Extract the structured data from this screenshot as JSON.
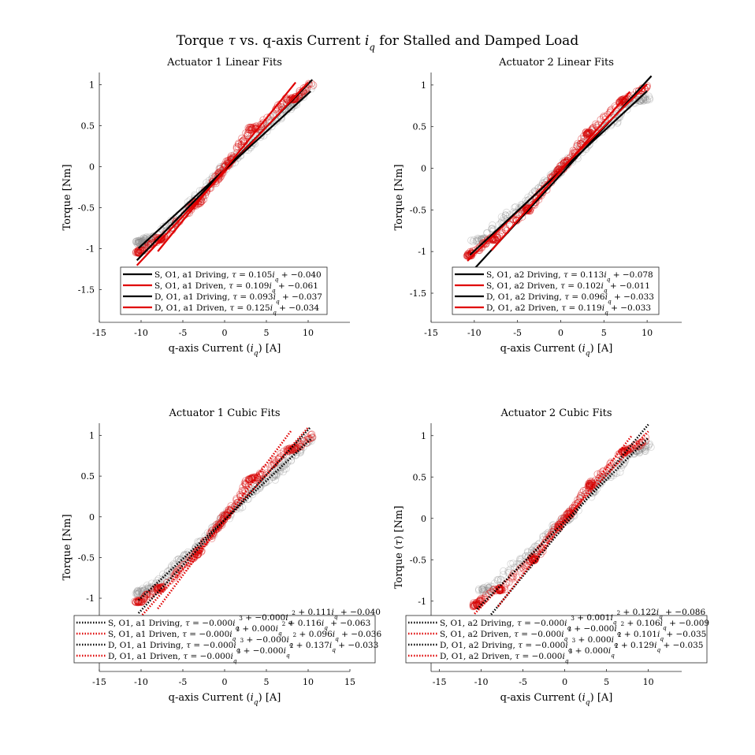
{
  "figure": {
    "title": "Torque τ vs. q-axis Current i_q for Stalled and Damped Load"
  },
  "chart_data": [
    {
      "type": "scatter",
      "title": "Actuator 1 Linear Fits",
      "xlabel": "q-axis Current (i_q) [A]",
      "ylabel": "Torque [Nm]",
      "xlim": [
        -15,
        15
      ],
      "ylim": [
        -1.9,
        1.15
      ],
      "xticks": [
        "-15",
        "-10",
        "-5",
        "0",
        "5",
        "10"
      ],
      "yticks": [
        "-1.5",
        "-1",
        "-0.5",
        "0",
        "0.5",
        "1"
      ],
      "grid": false,
      "legend_position": "bottom",
      "data_points": {
        "gray": [
          [
            -10.3,
            -0.92
          ],
          [
            -10.0,
            -0.93
          ],
          [
            -9.8,
            -0.91
          ],
          [
            -8,
            -0.84
          ],
          [
            -6,
            -0.68
          ],
          [
            -4,
            -0.46
          ],
          [
            -2,
            -0.23
          ],
          [
            0,
            0
          ],
          [
            2,
            0.17
          ],
          [
            4,
            0.37
          ],
          [
            6,
            0.56
          ],
          [
            7.5,
            0.72
          ],
          [
            8.5,
            0.8
          ],
          [
            10.3,
            0.97
          ]
        ],
        "red": [
          [
            -10.5,
            -1.04
          ],
          [
            -10.0,
            -1.03
          ],
          [
            -8,
            -0.88
          ],
          [
            -7.5,
            -0.87
          ],
          [
            -4,
            -0.5
          ],
          [
            -3,
            -0.42
          ],
          [
            -1,
            -0.15
          ],
          [
            0,
            0
          ],
          [
            1,
            0.12
          ],
          [
            3,
            0.46
          ],
          [
            4,
            0.48
          ],
          [
            7.5,
            0.82
          ],
          [
            8.5,
            0.84
          ],
          [
            10.5,
            1.02
          ]
        ]
      },
      "series": [
        {
          "name": "S, O1, a1 Driving, τ = 0.105i_q + −0.040",
          "style": "solid",
          "color": "#000000",
          "slope": 0.105,
          "intercept": -0.04,
          "x_range": [
            -10.5,
            10.5
          ]
        },
        {
          "name": "S, O1, a1 Driven, τ = 0.109i_q + −0.061",
          "style": "solid",
          "color": "#e00000",
          "slope": 0.109,
          "intercept": -0.061,
          "x_range": [
            -10.5,
            10.0
          ]
        },
        {
          "name": "D, O1, a1 Driving, τ = 0.093i_q + −0.037",
          "style": "solid",
          "color": "#000000",
          "slope": 0.093,
          "intercept": -0.037,
          "x_range": [
            -10.3,
            10.3
          ]
        },
        {
          "name": "D, O1, a1 Driven, τ = 0.125i_q + −0.034",
          "style": "solid",
          "color": "#e00000",
          "slope": 0.125,
          "intercept": -0.034,
          "x_range": [
            -8.0,
            8.5
          ]
        }
      ]
    },
    {
      "type": "scatter",
      "title": "Actuator 2 Linear Fits",
      "xlabel": "q-axis Current (i_q) [A]",
      "ylabel": "Torque [Nm]",
      "xlim": [
        -15,
        14
      ],
      "ylim": [
        -1.85,
        1.15
      ],
      "xticks": [
        "-15",
        "-10",
        "-5",
        "0",
        "5",
        "10"
      ],
      "yticks": [
        "-1.5",
        "-1",
        "-0.5",
        "0",
        "0.5",
        "1"
      ],
      "grid": false,
      "legend_position": "bottom",
      "data_points": {
        "gray": [
          [
            -10,
            -0.88
          ],
          [
            -9,
            -0.85
          ],
          [
            -6,
            -0.56
          ],
          [
            -4,
            -0.42
          ],
          [
            -2,
            -0.2
          ],
          [
            0,
            -0.02
          ],
          [
            2,
            0.2
          ],
          [
            4,
            0.42
          ],
          [
            6,
            0.55
          ],
          [
            7.5,
            0.78
          ],
          [
            9,
            0.82
          ],
          [
            10,
            0.85
          ]
        ],
        "red": [
          [
            -10.8,
            -1.05
          ],
          [
            -10.5,
            -1.03
          ],
          [
            -8,
            -0.85
          ],
          [
            -7.5,
            -0.84
          ],
          [
            -4,
            -0.5
          ],
          [
            -3.5,
            -0.48
          ],
          [
            -1,
            -0.12
          ],
          [
            0,
            0
          ],
          [
            1,
            0.1
          ],
          [
            3,
            0.4
          ],
          [
            3.5,
            0.45
          ],
          [
            7,
            0.8
          ],
          [
            7.5,
            0.82
          ],
          [
            10,
            0.98
          ]
        ]
      },
      "series": [
        {
          "name": "S, O1, a2 Driving, τ = 0.113i_q + −0.078",
          "style": "solid",
          "color": "#000000",
          "slope": 0.113,
          "intercept": -0.078,
          "x_range": [
            -10.5,
            10.5
          ]
        },
        {
          "name": "S, O1, a2 Driven, τ = 0.102i_q + −0.011",
          "style": "solid",
          "color": "#e00000",
          "slope": 0.102,
          "intercept": -0.011,
          "x_range": [
            -10.8,
            10.0
          ]
        },
        {
          "name": "D, O1, a2 Driving, τ = 0.096i_q + −0.033",
          "style": "solid",
          "color": "#000000",
          "slope": 0.096,
          "intercept": -0.033,
          "x_range": [
            -10.5,
            10.0
          ]
        },
        {
          "name": "D, O1, a2 Driven, τ = 0.119i_q + −0.033",
          "style": "solid",
          "color": "#e00000",
          "slope": 0.119,
          "intercept": -0.033,
          "x_range": [
            -8.0,
            8.0
          ]
        }
      ]
    },
    {
      "type": "scatter",
      "title": "Actuator 1 Cubic Fits",
      "xlabel": "q-axis Current (i_q) [A]",
      "ylabel": "Torque [Nm]",
      "xlim": [
        -15,
        15
      ],
      "ylim": [
        -1.9,
        1.15
      ],
      "xticks": [
        "-15",
        "-10",
        "-5",
        "0",
        "5",
        "10",
        "15"
      ],
      "yticks": [
        "-1",
        "-0.5",
        "0",
        "0.5",
        "1"
      ],
      "grid": false,
      "legend_position": "bottom",
      "data_points": {
        "gray": [
          [
            -10.3,
            -0.92
          ],
          [
            -10.0,
            -0.93
          ],
          [
            -8,
            -0.82
          ],
          [
            -6,
            -0.6
          ],
          [
            -4,
            -0.46
          ],
          [
            -2,
            -0.23
          ],
          [
            0,
            -0.02
          ],
          [
            2,
            0.17
          ],
          [
            4,
            0.37
          ],
          [
            6,
            0.5
          ],
          [
            7,
            0.62
          ],
          [
            8.5,
            0.8
          ],
          [
            10.3,
            0.97
          ]
        ],
        "red": [
          [
            -10.5,
            -1.04
          ],
          [
            -10.0,
            -1.03
          ],
          [
            -8,
            -0.88
          ],
          [
            -7.5,
            -0.87
          ],
          [
            -4,
            -0.52
          ],
          [
            -3,
            -0.42
          ],
          [
            -1,
            -0.15
          ],
          [
            0,
            0
          ],
          [
            1,
            0.12
          ],
          [
            3,
            0.46
          ],
          [
            4,
            0.48
          ],
          [
            7.5,
            0.82
          ],
          [
            8.5,
            0.84
          ],
          [
            10.5,
            1.0
          ]
        ]
      },
      "series": [
        {
          "name": "S, O1, a1 Driving, τ = −0.000i_q^3 + −0.000i_q^2 + 0.111i_q + −0.040",
          "style": "dotted",
          "color": "#000000",
          "slope": 0.111,
          "intercept": -0.04,
          "x_range": [
            -10.3,
            10.3
          ]
        },
        {
          "name": "S, O1, a1 Driven, τ = −0.000i_q^3 + 0.000i_q^2 + 0.116i_q + −0.063",
          "style": "dotted",
          "color": "#e00000",
          "slope": 0.116,
          "intercept": -0.063,
          "x_range": [
            -10.5,
            10.0
          ]
        },
        {
          "name": "D, O1, a1 Driving, τ = −0.000i_q^3 + −0.000i_q^2 + 0.096i_q + −0.036",
          "style": "dotted",
          "color": "#000000",
          "slope": 0.096,
          "intercept": -0.036,
          "x_range": [
            -10.3,
            10.3
          ]
        },
        {
          "name": "D, O1, a1 Driven, τ = −0.000i_q^3 + −0.000i_q^2 + 0.137i_q + −0.033",
          "style": "dotted",
          "color": "#e00000",
          "slope": 0.137,
          "intercept": -0.033,
          "x_range": [
            -8.0,
            8.0
          ]
        }
      ]
    },
    {
      "type": "scatter",
      "title": "Actuator 2 Cubic Fits",
      "xlabel": "q-axis Current (i_q) [A]",
      "ylabel": "Torque (τ) [Nm]",
      "xlim": [
        -16,
        14
      ],
      "ylim": [
        -1.85,
        1.15
      ],
      "xticks": [
        "-15",
        "-10",
        "-5",
        "0",
        "5",
        "10"
      ],
      "yticks": [
        "-1",
        "-0.5",
        "0",
        "0.5",
        "1"
      ],
      "grid": false,
      "legend_position": "bottom",
      "data_points": {
        "gray": [
          [
            -10,
            -0.88
          ],
          [
            -9,
            -0.85
          ],
          [
            -6,
            -0.56
          ],
          [
            -4,
            -0.42
          ],
          [
            -2,
            -0.2
          ],
          [
            0,
            -0.02
          ],
          [
            2,
            0.2
          ],
          [
            4,
            0.42
          ],
          [
            6,
            0.55
          ],
          [
            7.5,
            0.78
          ],
          [
            9,
            0.82
          ],
          [
            10,
            0.9
          ]
        ],
        "red": [
          [
            -10.8,
            -1.05
          ],
          [
            -10.5,
            -1.03
          ],
          [
            -8,
            -0.86
          ],
          [
            -7.5,
            -0.85
          ],
          [
            -4,
            -0.5
          ],
          [
            -3.5,
            -0.48
          ],
          [
            -1,
            -0.12
          ],
          [
            0,
            0
          ],
          [
            1,
            0.1
          ],
          [
            3,
            0.4
          ],
          [
            3.5,
            0.45
          ],
          [
            7,
            0.8
          ],
          [
            7.5,
            0.82
          ],
          [
            10,
            0.97
          ]
        ]
      },
      "series": [
        {
          "name": "S, O1, a2 Driving, τ = −0.000i_q^3 + 0.001i_q^2 + 0.122i_q + −0.086",
          "style": "dotted",
          "color": "#000000",
          "slope": 0.122,
          "intercept": -0.086,
          "x_range": [
            -10.5,
            10.0
          ]
        },
        {
          "name": "S, O1, a2 Driven, τ = −0.000i_q^3 + −0.000i_q^2 + 0.106i_q + −0.009",
          "style": "dotted",
          "color": "#e00000",
          "slope": 0.106,
          "intercept": -0.009,
          "x_range": [
            -10.8,
            10.0
          ]
        },
        {
          "name": "D, O1, a2 Driving, τ = −0.000i_q^3 + 0.000i_q^2 + 0.101i_q + −0.035",
          "style": "dotted",
          "color": "#000000",
          "slope": 0.101,
          "intercept": -0.035,
          "x_range": [
            -10.5,
            10.0
          ]
        },
        {
          "name": "D, O1, a2 Driven, τ = −0.000i_q^3 + 0.000i_q^2 + 0.129i_q + −0.035",
          "style": "dotted",
          "color": "#e00000",
          "slope": 0.129,
          "intercept": -0.035,
          "x_range": [
            -8.0,
            8.0
          ]
        }
      ]
    }
  ]
}
